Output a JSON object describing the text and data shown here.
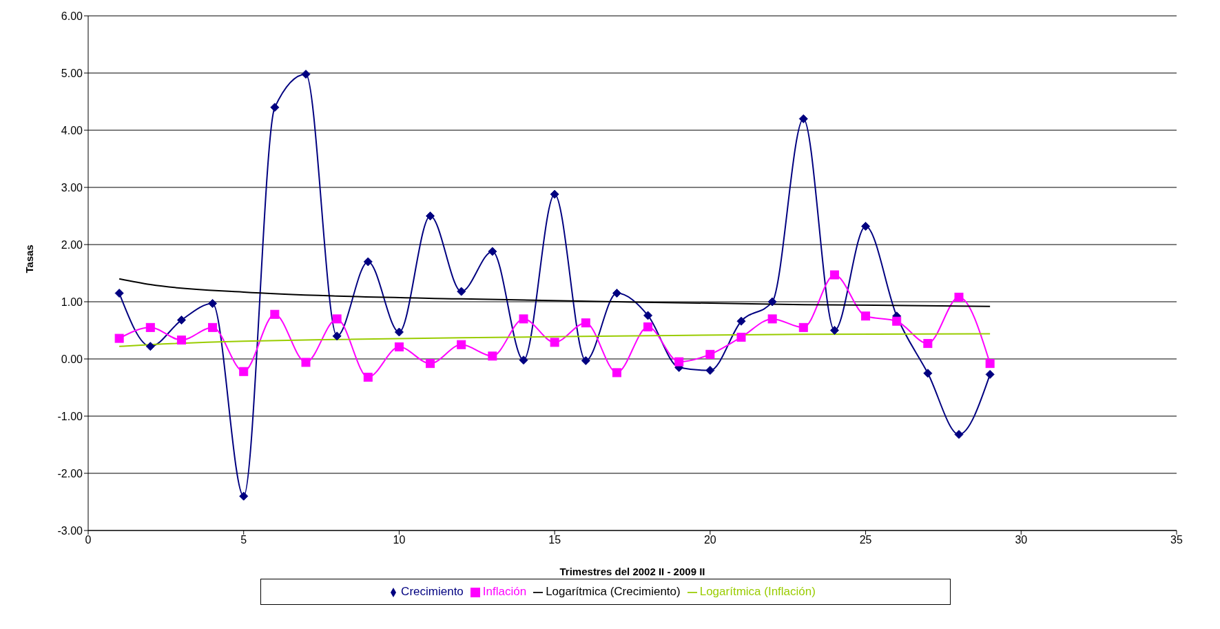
{
  "chart_data": {
    "type": "line",
    "xlabel": "Trimestres del 2002 II - 2009 II",
    "ylabel": "Tasas",
    "xlim": [
      0,
      35
    ],
    "xticks": [
      0,
      5,
      10,
      15,
      20,
      25,
      30,
      35
    ],
    "ylim": [
      -3,
      6
    ],
    "yticks": [
      {
        "value": -3,
        "label": "-3.00"
      },
      {
        "value": -2,
        "label": "-2.00"
      },
      {
        "value": -1,
        "label": "-1.00"
      },
      {
        "value": 0,
        "label": "0.00"
      },
      {
        "value": 1,
        "label": "1.00"
      },
      {
        "value": 2,
        "label": "2.00"
      },
      {
        "value": 3,
        "label": "3.00"
      },
      {
        "value": 4,
        "label": "4.00"
      },
      {
        "value": 5,
        "label": "5.00"
      },
      {
        "value": 6,
        "label": "6.00"
      }
    ],
    "grid": "y",
    "legend": "bottom",
    "series": [
      {
        "name": "Crecimiento",
        "color": "#000080",
        "marker": "diamond",
        "x": [
          1,
          2,
          3,
          4,
          5,
          6,
          7,
          8,
          9,
          10,
          11,
          12,
          13,
          14,
          15,
          16,
          17,
          18,
          19,
          20,
          21,
          22,
          23,
          24,
          25,
          26,
          27,
          28,
          29
        ],
        "values": [
          1.15,
          0.22,
          0.68,
          0.97,
          -2.4,
          4.4,
          4.98,
          0.4,
          1.7,
          0.47,
          2.5,
          1.18,
          1.88,
          -0.02,
          2.88,
          -0.03,
          1.15,
          0.76,
          -0.15,
          -0.2,
          0.66,
          1.0,
          4.2,
          0.5,
          2.32,
          0.75,
          -0.25,
          -1.32,
          -0.27
        ]
      },
      {
        "name": "Inflación",
        "color": "#ff00ff",
        "marker": "square",
        "x": [
          1,
          2,
          3,
          4,
          5,
          6,
          7,
          8,
          9,
          10,
          11,
          12,
          13,
          14,
          15,
          16,
          17,
          18,
          19,
          20,
          21,
          22,
          23,
          24,
          25,
          26,
          27,
          28,
          29
        ],
        "values": [
          0.36,
          0.55,
          0.33,
          0.55,
          -0.22,
          0.78,
          -0.06,
          0.7,
          -0.32,
          0.21,
          -0.08,
          0.25,
          0.05,
          0.7,
          0.29,
          0.63,
          -0.24,
          0.56,
          -0.05,
          0.08,
          0.38,
          0.7,
          0.55,
          1.47,
          0.75,
          0.66,
          0.27,
          1.08,
          -0.08
        ]
      },
      {
        "name": "Logarítmica (Crecimiento)",
        "color": "#000000",
        "marker": "none",
        "x": [
          1,
          2,
          5,
          8,
          12,
          17,
          23,
          29
        ],
        "values": [
          1.4,
          1.3,
          1.17,
          1.1,
          1.05,
          1.0,
          0.95,
          0.92
        ]
      },
      {
        "name": "Logarítmica (Inflación)",
        "color": "#99cc00",
        "marker": "none",
        "x": [
          1,
          2,
          5,
          8,
          12,
          17,
          23,
          29
        ],
        "values": [
          0.22,
          0.25,
          0.31,
          0.34,
          0.37,
          0.4,
          0.43,
          0.44
        ]
      }
    ]
  }
}
